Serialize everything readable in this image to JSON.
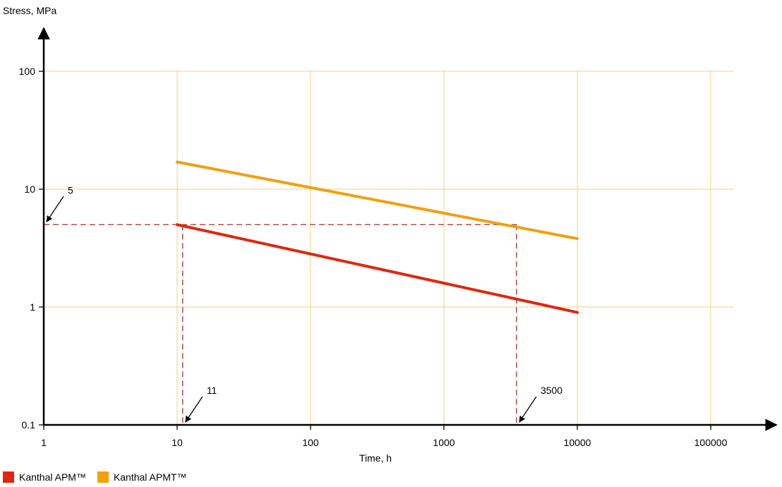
{
  "chart_data": {
    "type": "line",
    "xlabel": "Time, h",
    "ylabel": "Stress, MPa",
    "x_scale": "log",
    "y_scale": "log",
    "xlim": [
      1,
      100000
    ],
    "ylim": [
      0.1,
      100
    ],
    "x_ticks": [
      "1",
      "10",
      "100",
      "1000",
      "10000",
      "100000"
    ],
    "y_ticks": [
      "0.1",
      "1",
      "10",
      "100"
    ],
    "grid": true,
    "grid_color": "#f6d27a",
    "legend_position": "bottom-left",
    "series": [
      {
        "name": "Kanthal APM™",
        "color": "#e0260f",
        "x": [
          10,
          10000
        ],
        "y": [
          5,
          0.9
        ]
      },
      {
        "name": "Kanthal APMT™",
        "color": "#f0a010",
        "x": [
          10,
          10000
        ],
        "y": [
          17,
          3.8
        ]
      }
    ],
    "reference_lines": {
      "color": "#a0302a",
      "stress": 5,
      "times": [
        11,
        3500
      ]
    },
    "annotations": [
      {
        "text": "5",
        "points_to": {
          "x": 1,
          "y": 5
        }
      },
      {
        "text": "11",
        "points_to": {
          "x": 11,
          "y": 0.1
        }
      },
      {
        "text": "3500",
        "points_to": {
          "x": 3500,
          "y": 0.1
        }
      }
    ]
  }
}
